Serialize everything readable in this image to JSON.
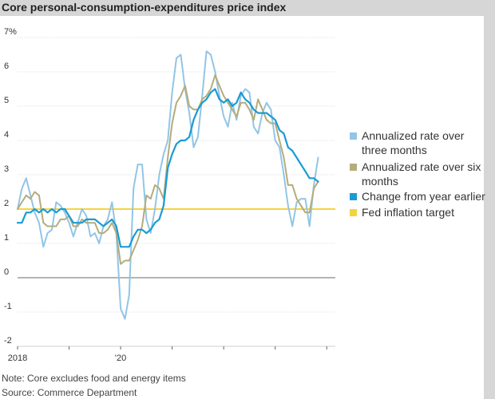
{
  "chart_data": {
    "type": "line",
    "title": "Core personal-consumption-expenditures price index",
    "ylabel": "%",
    "ylim": [
      -2,
      7
    ],
    "yticks": [
      {
        "value": 7,
        "label": "7%"
      },
      {
        "value": 6,
        "label": "6"
      },
      {
        "value": 5,
        "label": "5"
      },
      {
        "value": 4,
        "label": "4"
      },
      {
        "value": 3,
        "label": "3"
      },
      {
        "value": 2,
        "label": "2"
      },
      {
        "value": 1,
        "label": "1"
      },
      {
        "value": 0,
        "label": "0"
      },
      {
        "value": -1,
        "label": "-1"
      },
      {
        "value": -2,
        "label": "-2"
      }
    ],
    "xlim": [
      0,
      74
    ],
    "xticks": [
      {
        "value": 0,
        "label": "2018"
      },
      {
        "value": 12,
        "label": ""
      },
      {
        "value": 24,
        "label": "'20"
      },
      {
        "value": 36,
        "label": ""
      },
      {
        "value": 48,
        "label": ""
      },
      {
        "value": 60,
        "label": ""
      },
      {
        "value": 72,
        "label": ""
      }
    ],
    "target": {
      "name": "Fed inflation target",
      "value": 2,
      "color": "#f5d33f"
    },
    "series": [
      {
        "name": "Annualized rate over three months",
        "color": "#92c5e6",
        "values": [
          2.0,
          2.6,
          2.9,
          2.4,
          1.9,
          1.6,
          0.9,
          1.3,
          1.4,
          2.2,
          2.1,
          1.9,
          1.6,
          1.2,
          1.6,
          2.0,
          1.8,
          1.2,
          1.3,
          1.0,
          1.5,
          1.7,
          2.2,
          1.3,
          -0.9,
          -1.2,
          -0.5,
          2.6,
          3.3,
          3.3,
          1.7,
          1.3,
          2.0,
          3.0,
          3.6,
          4.0,
          5.4,
          6.4,
          6.5,
          5.5,
          4.8,
          3.8,
          4.1,
          5.3,
          6.6,
          6.5,
          6.0,
          5.3,
          4.7,
          4.4,
          5.1,
          4.6,
          5.3,
          5.5,
          5.4,
          4.4,
          4.2,
          4.8,
          5.1,
          4.9,
          4.0,
          3.8,
          3.0,
          2.1,
          1.5,
          2.2,
          2.3,
          2.3,
          1.5,
          2.7,
          3.5
        ]
      },
      {
        "name": "Annualized rate over six months",
        "color": "#b4ac7c",
        "values": [
          2.0,
          2.2,
          2.4,
          2.3,
          2.5,
          2.4,
          1.6,
          1.5,
          1.5,
          1.5,
          1.7,
          1.7,
          1.8,
          1.5,
          1.5,
          1.7,
          1.6,
          1.6,
          1.6,
          1.3,
          1.3,
          1.4,
          1.6,
          1.3,
          0.4,
          0.5,
          0.5,
          0.8,
          1.1,
          1.5,
          2.4,
          2.3,
          2.7,
          2.6,
          2.3,
          3.5,
          4.5,
          5.1,
          5.3,
          5.6,
          5.0,
          4.9,
          4.9,
          5.2,
          5.3,
          5.5,
          5.9,
          5.6,
          5.3,
          5.1,
          4.9,
          4.7,
          5.1,
          5.1,
          4.9,
          4.6,
          5.2,
          4.9,
          4.6,
          4.5,
          4.5,
          4.0,
          3.5,
          2.7,
          2.7,
          2.3,
          2.1,
          1.9,
          1.9,
          2.6,
          2.8
        ]
      },
      {
        "name": "Change from year earlier",
        "color": "#1a9bd4",
        "values": [
          1.6,
          1.6,
          1.9,
          1.9,
          2.0,
          1.9,
          2.0,
          1.9,
          2.0,
          1.9,
          2.0,
          2.0,
          1.8,
          1.6,
          1.6,
          1.6,
          1.7,
          1.7,
          1.7,
          1.6,
          1.5,
          1.6,
          1.7,
          1.5,
          0.9,
          0.9,
          0.9,
          1.2,
          1.4,
          1.4,
          1.3,
          1.4,
          1.6,
          1.7,
          2.1,
          3.2,
          3.6,
          3.9,
          4.0,
          4.0,
          4.1,
          4.6,
          4.9,
          5.1,
          5.2,
          5.4,
          5.5,
          5.2,
          5.1,
          5.2,
          5.0,
          5.1,
          5.4,
          5.2,
          5.1,
          4.9,
          4.8,
          4.8,
          4.8,
          4.7,
          4.6,
          4.3,
          4.2,
          3.8,
          3.7,
          3.5,
          3.3,
          3.1,
          2.9,
          2.9,
          2.8
        ]
      }
    ]
  },
  "note": "Note: Core excludes food and energy items",
  "source": "Source: Commerce Department"
}
